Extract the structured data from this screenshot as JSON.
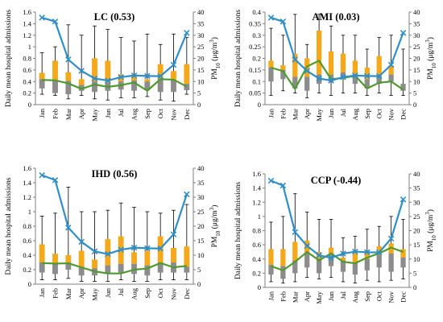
{
  "chart_data": [
    {
      "type": "bar",
      "title": "LC (0.53)",
      "ylabel": "Daily mean hospital admissions",
      "y2label": "PM10 (μg/m3)",
      "categories": [
        "Jan",
        "Feb",
        "Mar",
        "Apr",
        "May",
        "Jun",
        "Jul",
        "Aug",
        "Sep",
        "Oct",
        "Nov",
        "Dec"
      ],
      "ylim": [
        0,
        1.6
      ],
      "y2lim": [
        0,
        40
      ],
      "yticks": [
        "0",
        "0.2",
        "0.4",
        "0.6",
        "0.8",
        "1",
        "1.2",
        "1.4",
        "1.6"
      ],
      "y2ticks": [
        "0",
        "5",
        "10",
        "15",
        "20",
        "25",
        "30",
        "35",
        "40"
      ],
      "grid": false,
      "series": [
        {
          "values": [
            0.44,
            0.42,
            0.41,
            0.34,
            0.4,
            0.38,
            0.4,
            0.42,
            0.4,
            0.44,
            0.42,
            0.36
          ]
        },
        {
          "values": [
            0.28,
            0.2,
            0.18,
            0.24,
            0.22,
            0.24,
            0.26,
            0.24,
            0.26,
            0.22,
            0.22,
            0.25
          ]
        },
        {
          "values": [
            0.55,
            0.76,
            0.56,
            0.44,
            0.8,
            0.76,
            0.52,
            0.48,
            0.44,
            0.7,
            0.58,
            0.7
          ]
        },
        {
          "values": [
            0.9,
            1.0,
            1.38,
            1.2,
            1.36,
            1.3,
            1.16,
            1.1,
            1.22,
            1.04,
            1.22,
            1.16
          ]
        },
        {
          "values": [
            0.18,
            0.16,
            0.1,
            0.16,
            0.1,
            0.08,
            0.12,
            0.12,
            0.14,
            0.08,
            0.06,
            0.18
          ]
        },
        {
          "values": [
            10.7,
            10.5,
            9.2,
            6.8,
            8.7,
            7.7,
            8.4,
            9.6,
            6.0,
            11.0,
            10.8,
            7.8
          ]
        },
        {
          "values": [
            37.6,
            35.9,
            19.5,
            14.6,
            11.3,
            10.4,
            11.9,
            12.6,
            12.4,
            12.3,
            17.2,
            31.0
          ]
        }
      ]
    },
    {
      "type": "bar",
      "title": "AMI (0.03)",
      "ylabel": "Daily mean hospital admissions",
      "y2label": "PM10 (μg/m3)",
      "categories": [
        "Jan",
        "Feb",
        "Mar",
        "Apr",
        "May",
        "Jun",
        "Jul",
        "Aug",
        "Sep",
        "Oct",
        "Nov",
        "Dec"
      ],
      "ylim": [
        0,
        0.4
      ],
      "y2lim": [
        0,
        40
      ],
      "yticks": [
        "0",
        "0.05",
        "0.1",
        "0.15",
        "0.2",
        "0.25",
        "0.3",
        "0.35",
        "0.4"
      ],
      "y2ticks": [
        "0",
        "5",
        "10",
        "15",
        "20",
        "25",
        "30",
        "35",
        "40"
      ],
      "grid": false,
      "series": [
        {
          "values": [
            0.16,
            0.15,
            0.12,
            0.12,
            0.13,
            0.13,
            0.14,
            0.13,
            0.11,
            0.13,
            0.13,
            0.09
          ]
        },
        {
          "values": [
            0.1,
            0.11,
            0.07,
            0.06,
            0.09,
            0.1,
            0.11,
            0.09,
            0.07,
            0.09,
            0.1,
            0.06
          ]
        },
        {
          "values": [
            0.19,
            0.17,
            0.22,
            0.2,
            0.32,
            0.23,
            0.22,
            0.19,
            0.16,
            0.21,
            0.17,
            0.09
          ]
        },
        {
          "values": [
            0.33,
            0.3,
            0.39,
            0.26,
            0.39,
            0.34,
            0.3,
            0.3,
            0.24,
            0.29,
            0.3,
            0.24
          ]
        },
        {
          "values": [
            0.04,
            0.06,
            0.05,
            0.03,
            0.05,
            0.04,
            0.05,
            0.05,
            0.04,
            0.05,
            0.04,
            0.04
          ]
        },
        {
          "values": [
            16.0,
            14.5,
            6.8,
            16.5,
            19.0,
            11.0,
            11.5,
            12.5,
            7.0,
            9.5,
            10.0,
            6.5
          ]
        },
        {
          "values": [
            37.6,
            35.9,
            19.5,
            14.6,
            11.3,
            10.4,
            11.9,
            12.6,
            12.4,
            12.3,
            17.2,
            31.0
          ]
        }
      ]
    },
    {
      "type": "bar",
      "title": "IHD (0.56)",
      "ylabel": "Daily mean hospital admissions",
      "y2label": "PM10 (μg/m3)",
      "categories": [
        "Jan",
        "Feb",
        "Mar",
        "Apr",
        "May",
        "Jun",
        "Jul",
        "Aug",
        "Sep",
        "Oct",
        "Nov",
        "Dec"
      ],
      "ylim": [
        0,
        1.6
      ],
      "y2lim": [
        0,
        40
      ],
      "yticks": [
        "0",
        "0.2",
        "0.4",
        "0.6",
        "0.8",
        "1",
        "1.2",
        "1.4",
        "1.6"
      ],
      "y2ticks": [
        "0",
        "5",
        "10",
        "15",
        "20",
        "25",
        "30",
        "35",
        "40"
      ],
      "grid": false,
      "series": [
        {
          "values": [
            0.3,
            0.28,
            0.3,
            0.24,
            0.22,
            0.26,
            0.28,
            0.28,
            0.26,
            0.3,
            0.3,
            0.24
          ]
        },
        {
          "values": [
            0.16,
            0.14,
            0.2,
            0.12,
            0.12,
            0.14,
            0.16,
            0.14,
            0.12,
            0.16,
            0.16,
            0.16
          ]
        },
        {
          "values": [
            0.55,
            0.42,
            0.4,
            0.46,
            0.34,
            0.62,
            0.66,
            0.44,
            0.46,
            0.66,
            0.5,
            0.52
          ]
        },
        {
          "values": [
            0.94,
            0.98,
            1.34,
            1.0,
            1.0,
            1.02,
            1.12,
            1.06,
            1.0,
            0.98,
            1.02,
            1.1
          ]
        },
        {
          "values": [
            0.06,
            0.06,
            0.08,
            0.04,
            0.04,
            0.04,
            0.06,
            0.04,
            0.04,
            0.06,
            0.06,
            0.06
          ]
        },
        {
          "values": [
            7.3,
            7.1,
            7.2,
            5.8,
            4.4,
            3.7,
            3.7,
            5.0,
            5.4,
            7.3,
            5.8,
            6.3
          ]
        },
        {
          "values": [
            37.6,
            35.9,
            19.5,
            14.6,
            11.3,
            10.4,
            11.9,
            12.6,
            12.4,
            12.3,
            17.2,
            31.0
          ]
        }
      ]
    },
    {
      "type": "bar",
      "title": "CCP (-0.44)",
      "ylabel": "Daily mean hospital admissions",
      "y2label": "PM10 (μg/m3)",
      "categories": [
        "Jan",
        "Feb",
        "Mar",
        "Apr",
        "May",
        "Jun",
        "Jul",
        "Aug",
        "Sep",
        "Oct",
        "Nov",
        "Dec"
      ],
      "ylim": [
        0,
        1.6
      ],
      "y2lim": [
        0,
        40
      ],
      "yticks": [
        "0",
        "0.2",
        "0.4",
        "0.6",
        "0.8",
        "1",
        "1.2",
        "1.4",
        "1.6"
      ],
      "y2ticks": [
        "0",
        "5",
        "10",
        "15",
        "20",
        "25",
        "30",
        "35",
        "40"
      ],
      "grid": false,
      "series": [
        {
          "values": [
            0.32,
            0.3,
            0.38,
            0.48,
            0.4,
            0.48,
            0.38,
            0.34,
            0.4,
            0.46,
            0.48,
            0.42
          ]
        },
        {
          "values": [
            0.18,
            0.12,
            0.2,
            0.28,
            0.2,
            0.3,
            0.22,
            0.18,
            0.24,
            0.28,
            0.22,
            0.28
          ]
        },
        {
          "values": [
            0.54,
            0.54,
            0.64,
            0.66,
            0.5,
            0.56,
            0.42,
            0.5,
            0.5,
            0.58,
            0.62,
            0.54
          ]
        },
        {
          "values": [
            0.92,
            1.0,
            1.32,
            1.06,
            0.96,
            0.96,
            0.7,
            0.72,
            0.82,
            0.86,
            1.0,
            0.96
          ]
        },
        {
          "values": [
            0.08,
            0.06,
            0.08,
            0.14,
            0.12,
            0.14,
            0.08,
            0.06,
            0.1,
            0.08,
            0.1,
            0.12
          ]
        },
        {
          "values": [
            7.5,
            6.0,
            9.0,
            12.5,
            9.5,
            12.0,
            9.0,
            8.5,
            10.5,
            12.0,
            14.0,
            12.5
          ]
        },
        {
          "values": [
            37.6,
            35.9,
            19.5,
            14.6,
            11.3,
            10.4,
            11.9,
            12.6,
            12.4,
            12.3,
            17.2,
            31.0
          ]
        }
      ]
    }
  ],
  "colors": {
    "upper_box": "#F5A91A",
    "lower_box": "#8C8C8C",
    "whisker": "#000000",
    "green_line": "#4E9A2F",
    "blue_line": "#2F8EC8"
  }
}
